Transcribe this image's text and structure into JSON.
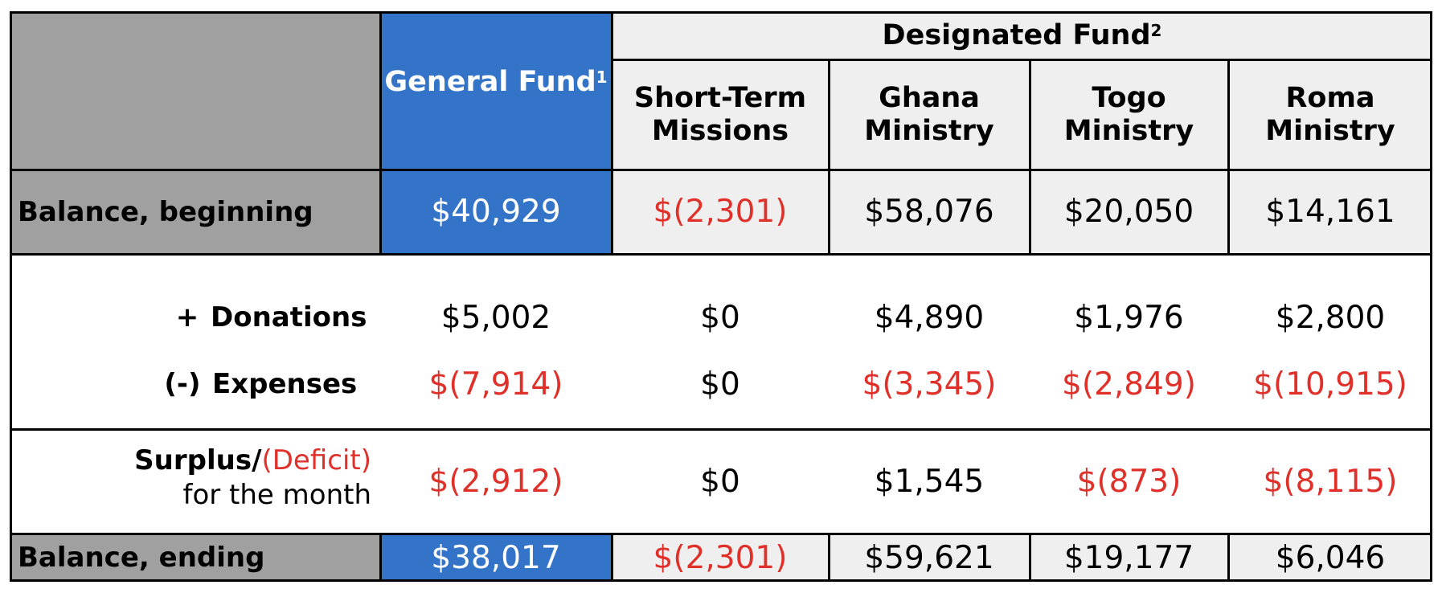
{
  "header": {
    "general_fund_label": "General Fund",
    "general_fund_note": "1",
    "designated_fund_label": "Designated Fund",
    "designated_fund_note": "2",
    "columns": [
      "Short-Term",
      "Missions",
      "Ghana",
      "Ministry",
      "Togo",
      "Ministry",
      "Roma",
      "Ministry"
    ]
  },
  "rows": {
    "balance_beginning": {
      "label": "Balance, beginning",
      "values": [
        "$40,929",
        "$(2,301)",
        "$58,076",
        "$20,050",
        "$14,161"
      ]
    },
    "donations": {
      "sign": "+",
      "label": "Donations",
      "values": [
        "$5,002",
        "$0",
        "$4,890",
        "$1,976",
        "$2,800"
      ]
    },
    "expenses": {
      "sign": "(-)",
      "label": "Expenses",
      "values": [
        "$(7,914)",
        "$0",
        "$(3,345)",
        "$(2,849)",
        "$(10,915)"
      ]
    },
    "surplus": {
      "label_part1": "Surplus/",
      "label_part2": "(Deficit)",
      "label_line2": "for the month",
      "values": [
        "$(2,912)",
        "$0",
        "$1,545",
        "$(873)",
        "$(8,115)"
      ]
    },
    "balance_ending": {
      "label": "Balance, ending",
      "values": [
        "$38,017",
        "$(2,301)",
        "$59,621",
        "$19,177",
        "$6,046"
      ]
    }
  },
  "colors": {
    "general_fund_blue": "#3474c8",
    "label_gray": "#a0a0a0",
    "designated_light": "#efefef",
    "negative_red": "#e0302a"
  }
}
